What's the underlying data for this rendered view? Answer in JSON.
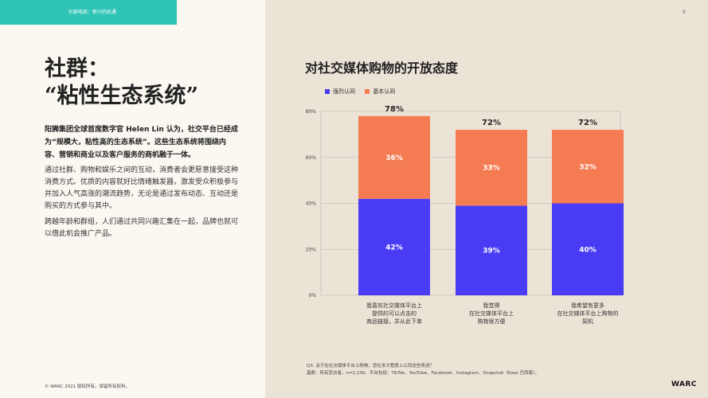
{
  "header": {
    "tab_text": "社群电商：新兴的机遇",
    "page_number": "9"
  },
  "left": {
    "title_line1": "社群：",
    "title_line2": "“粘性生态系统”",
    "lead": "阳狮集团全球首席数字官 Helen Lin 认为，社交平台已经成为“规模大，粘性高的生态系统”。这些生态系统将围绕内容、营销和商业以及客户服务的商机融于一体。",
    "para1": "通过社群、购物和娱乐之间的互动，消费者会更愿意接受这种消费方式。优质的内容就好比情绪触发器，激发受众积极参与并加入人气高涨的潮流趋势，无论是通过发布动态、互动还是购买的方式参与其中。",
    "para2": "跨越年龄和群组，人们通过共同兴趣汇集在一起，品牌也就可以借此机会推广产品。"
  },
  "footer": {
    "copyright": "© WARC 2021 版权所有。保留所有权利。",
    "question": "Q3. 关于在社交媒体平台上购物，您在多大程度上认同这些表述？",
    "base": "基数：所有受访者，n=2,230。平台包括：TikTok、YouTube、Facebook、Instagram、Snapchat（Kwai 巴西版）。",
    "logo_text": "WARC"
  },
  "chart_data": {
    "type": "bar",
    "stacked": true,
    "title": "对社交媒体购物的开放态度",
    "categories": [
      [
        "我喜欢社交媒体平台上",
        "提供的可以点击的",
        "商品链接，并从此下单"
      ],
      [
        "我觉得",
        "在社交媒体平台上",
        "购物很方便"
      ],
      [
        "我希望有更多",
        "在社交媒体平台上购物的",
        "契机"
      ]
    ],
    "series": [
      {
        "name": "强烈认同",
        "values": [
          42,
          39,
          40
        ],
        "labels": [
          "42%",
          "39%",
          "40%"
        ],
        "color": "#4a3cf5"
      },
      {
        "name": "基本认同",
        "values": [
          36,
          33,
          32
        ],
        "labels": [
          "36%",
          "33%",
          "32%"
        ],
        "color": "#f47b52"
      }
    ],
    "totals": [
      "78%",
      "72%",
      "72%"
    ],
    "yticks": [
      0,
      20,
      40,
      60,
      80
    ],
    "ytick_labels": [
      "0%",
      "20%",
      "40%",
      "60%",
      "80%"
    ],
    "ylim": [
      0,
      80
    ],
    "grid": true,
    "legend_position": "top-left"
  }
}
